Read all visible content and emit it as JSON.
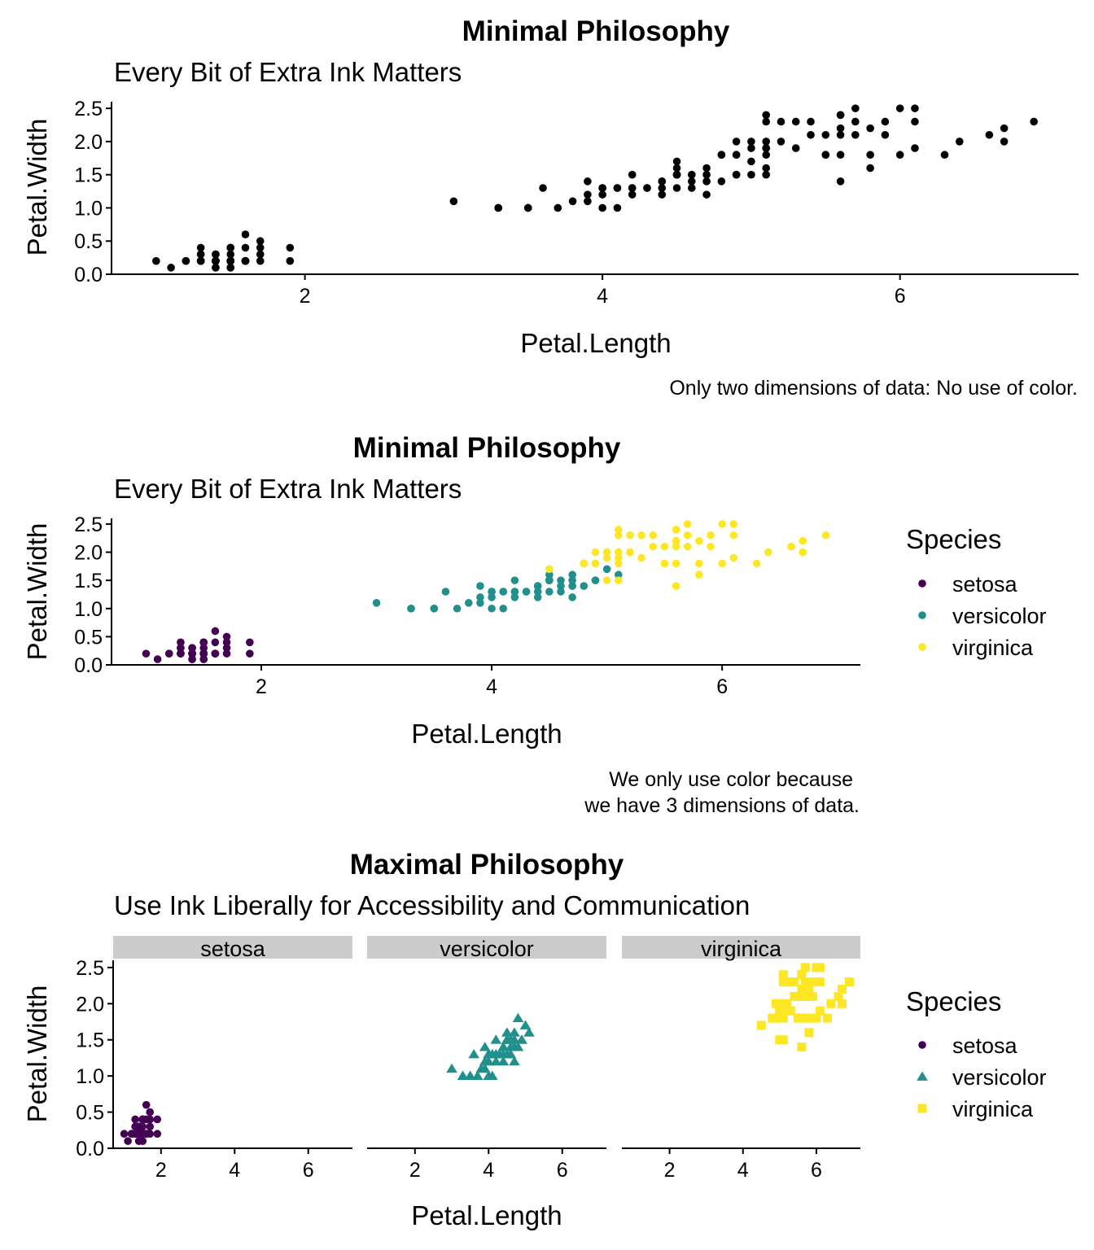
{
  "colors": {
    "setosa": "#440154",
    "versicolor": "#21908C",
    "virginica": "#FDE725",
    "plain": "#000000",
    "strip": "#cccccc"
  },
  "panels": [
    {
      "title": "Minimal Philosophy",
      "subtitle": "Every Bit of Extra Ink Matters",
      "xlabel": "Petal.Length",
      "ylabel": "Petal.Width",
      "caption": [
        "Only two dimensions of data: No use of color."
      ]
    },
    {
      "title": "Minimal Philosophy",
      "subtitle": "Every Bit of Extra Ink Matters",
      "xlabel": "Petal.Length",
      "ylabel": "Petal.Width",
      "caption": [
        "We only use color because",
        "we have 3 dimensions of data."
      ],
      "legend_title": "Species"
    },
    {
      "title": "Maximal Philosophy",
      "subtitle": "Use Ink Liberally for Accessibility and Communication",
      "xlabel": "Petal.Length",
      "ylabel": "Petal.Width",
      "legend_title": "Species",
      "facets": [
        "setosa",
        "versicolor",
        "virginica"
      ]
    }
  ],
  "legend_items": [
    "setosa",
    "versicolor",
    "virginica"
  ],
  "chart_data": [
    {
      "type": "scatter",
      "title": "Minimal Philosophy",
      "subtitle": "Every Bit of Extra Ink Matters",
      "xlabel": "Petal.Length",
      "ylabel": "Petal.Width",
      "xticks": [
        2,
        4,
        6
      ],
      "yticks": [
        0.0,
        0.5,
        1.0,
        1.5,
        2.0,
        2.5
      ],
      "xlim": [
        0.7,
        7.2
      ],
      "ylim": [
        0.0,
        2.6
      ],
      "color_by_species": false,
      "legend": "none",
      "caption": "Only two dimensions of data: No use of color."
    },
    {
      "type": "scatter",
      "title": "Minimal Philosophy",
      "subtitle": "Every Bit of Extra Ink Matters",
      "xlabel": "Petal.Length",
      "ylabel": "Petal.Width",
      "xticks": [
        2,
        4,
        6
      ],
      "yticks": [
        0.0,
        0.5,
        1.0,
        1.5,
        2.0,
        2.5
      ],
      "xlim": [
        0.7,
        7.2
      ],
      "ylim": [
        0.0,
        2.6
      ],
      "color_by_species": true,
      "legend": "right",
      "caption": "We only use color because we have 3 dimensions of data."
    },
    {
      "type": "scatter",
      "title": "Maximal Philosophy",
      "subtitle": "Use Ink Liberally for Accessibility and Communication",
      "xlabel": "Petal.Length",
      "ylabel": "Petal.Width",
      "xticks": [
        2,
        4,
        6
      ],
      "yticks": [
        0.0,
        0.5,
        1.0,
        1.5,
        2.0,
        2.5
      ],
      "xlim": [
        0.7,
        7.2
      ],
      "ylim": [
        0.0,
        2.6
      ],
      "faceted_by": "Species",
      "shapes": {
        "setosa": "circle",
        "versicolor": "triangle",
        "virginica": "square"
      },
      "legend": "right"
    }
  ],
  "species_data": {
    "setosa": {
      "x": [
        1.4,
        1.4,
        1.3,
        1.5,
        1.4,
        1.7,
        1.4,
        1.5,
        1.4,
        1.5,
        1.5,
        1.6,
        1.4,
        1.1,
        1.2,
        1.5,
        1.3,
        1.4,
        1.7,
        1.5,
        1.7,
        1.5,
        1.0,
        1.7,
        1.9,
        1.6,
        1.6,
        1.5,
        1.4,
        1.6,
        1.6,
        1.5,
        1.5,
        1.4,
        1.5,
        1.2,
        1.3,
        1.4,
        1.3,
        1.5,
        1.3,
        1.3,
        1.3,
        1.6,
        1.9,
        1.4,
        1.6,
        1.4,
        1.5,
        1.4
      ],
      "y": [
        0.2,
        0.2,
        0.2,
        0.2,
        0.2,
        0.4,
        0.3,
        0.2,
        0.2,
        0.1,
        0.2,
        0.2,
        0.1,
        0.1,
        0.2,
        0.4,
        0.4,
        0.3,
        0.3,
        0.3,
        0.2,
        0.4,
        0.2,
        0.5,
        0.2,
        0.2,
        0.4,
        0.2,
        0.2,
        0.2,
        0.2,
        0.4,
        0.1,
        0.2,
        0.2,
        0.2,
        0.2,
        0.1,
        0.2,
        0.2,
        0.3,
        0.3,
        0.2,
        0.6,
        0.4,
        0.3,
        0.2,
        0.2,
        0.2,
        0.2
      ]
    },
    "versicolor": {
      "x": [
        4.7,
        4.5,
        4.9,
        4.0,
        4.6,
        4.5,
        4.7,
        3.3,
        4.6,
        3.9,
        3.5,
        4.2,
        4.0,
        4.7,
        3.6,
        4.4,
        4.5,
        4.1,
        4.5,
        3.9,
        4.8,
        4.0,
        4.9,
        4.7,
        4.3,
        4.4,
        4.8,
        5.0,
        4.5,
        3.5,
        3.8,
        3.7,
        3.9,
        5.1,
        4.5,
        4.5,
        4.7,
        4.4,
        4.1,
        4.0,
        4.4,
        4.6,
        4.0,
        3.3,
        4.2,
        4.2,
        4.2,
        4.3,
        3.0,
        4.1
      ],
      "y": [
        1.4,
        1.5,
        1.5,
        1.3,
        1.5,
        1.3,
        1.6,
        1.0,
        1.3,
        1.4,
        1.0,
        1.5,
        1.0,
        1.4,
        1.3,
        1.4,
        1.5,
        1.0,
        1.5,
        1.1,
        1.8,
        1.3,
        1.5,
        1.2,
        1.3,
        1.4,
        1.4,
        1.7,
        1.5,
        1.0,
        1.1,
        1.0,
        1.2,
        1.6,
        1.5,
        1.6,
        1.5,
        1.3,
        1.3,
        1.3,
        1.2,
        1.4,
        1.2,
        1.0,
        1.3,
        1.2,
        1.3,
        1.3,
        1.1,
        1.3
      ]
    },
    "virginica": {
      "x": [
        6.0,
        5.1,
        5.9,
        5.6,
        5.8,
        6.6,
        4.5,
        6.3,
        5.8,
        6.1,
        5.1,
        5.3,
        5.5,
        5.0,
        5.1,
        5.3,
        5.5,
        6.7,
        6.9,
        5.0,
        5.7,
        4.9,
        6.7,
        4.9,
        5.7,
        6.0,
        4.8,
        4.9,
        5.6,
        5.8,
        6.1,
        6.4,
        5.6,
        5.1,
        5.6,
        6.1,
        5.6,
        5.5,
        4.8,
        5.4,
        5.6,
        5.1,
        5.1,
        5.9,
        5.7,
        5.2,
        5.0,
        5.2,
        5.4,
        5.1
      ],
      "y": [
        2.5,
        1.9,
        2.1,
        1.8,
        2.2,
        2.1,
        1.7,
        1.8,
        1.8,
        2.5,
        2.0,
        1.9,
        2.1,
        2.0,
        2.4,
        2.3,
        1.8,
        2.2,
        2.3,
        1.5,
        2.3,
        2.0,
        2.0,
        1.8,
        2.1,
        1.8,
        1.8,
        1.8,
        2.1,
        1.6,
        1.9,
        2.0,
        2.2,
        1.5,
        1.4,
        2.3,
        2.4,
        1.8,
        1.8,
        2.1,
        2.4,
        2.3,
        1.9,
        2.3,
        2.5,
        2.3,
        1.9,
        2.0,
        2.3,
        1.8
      ]
    }
  }
}
